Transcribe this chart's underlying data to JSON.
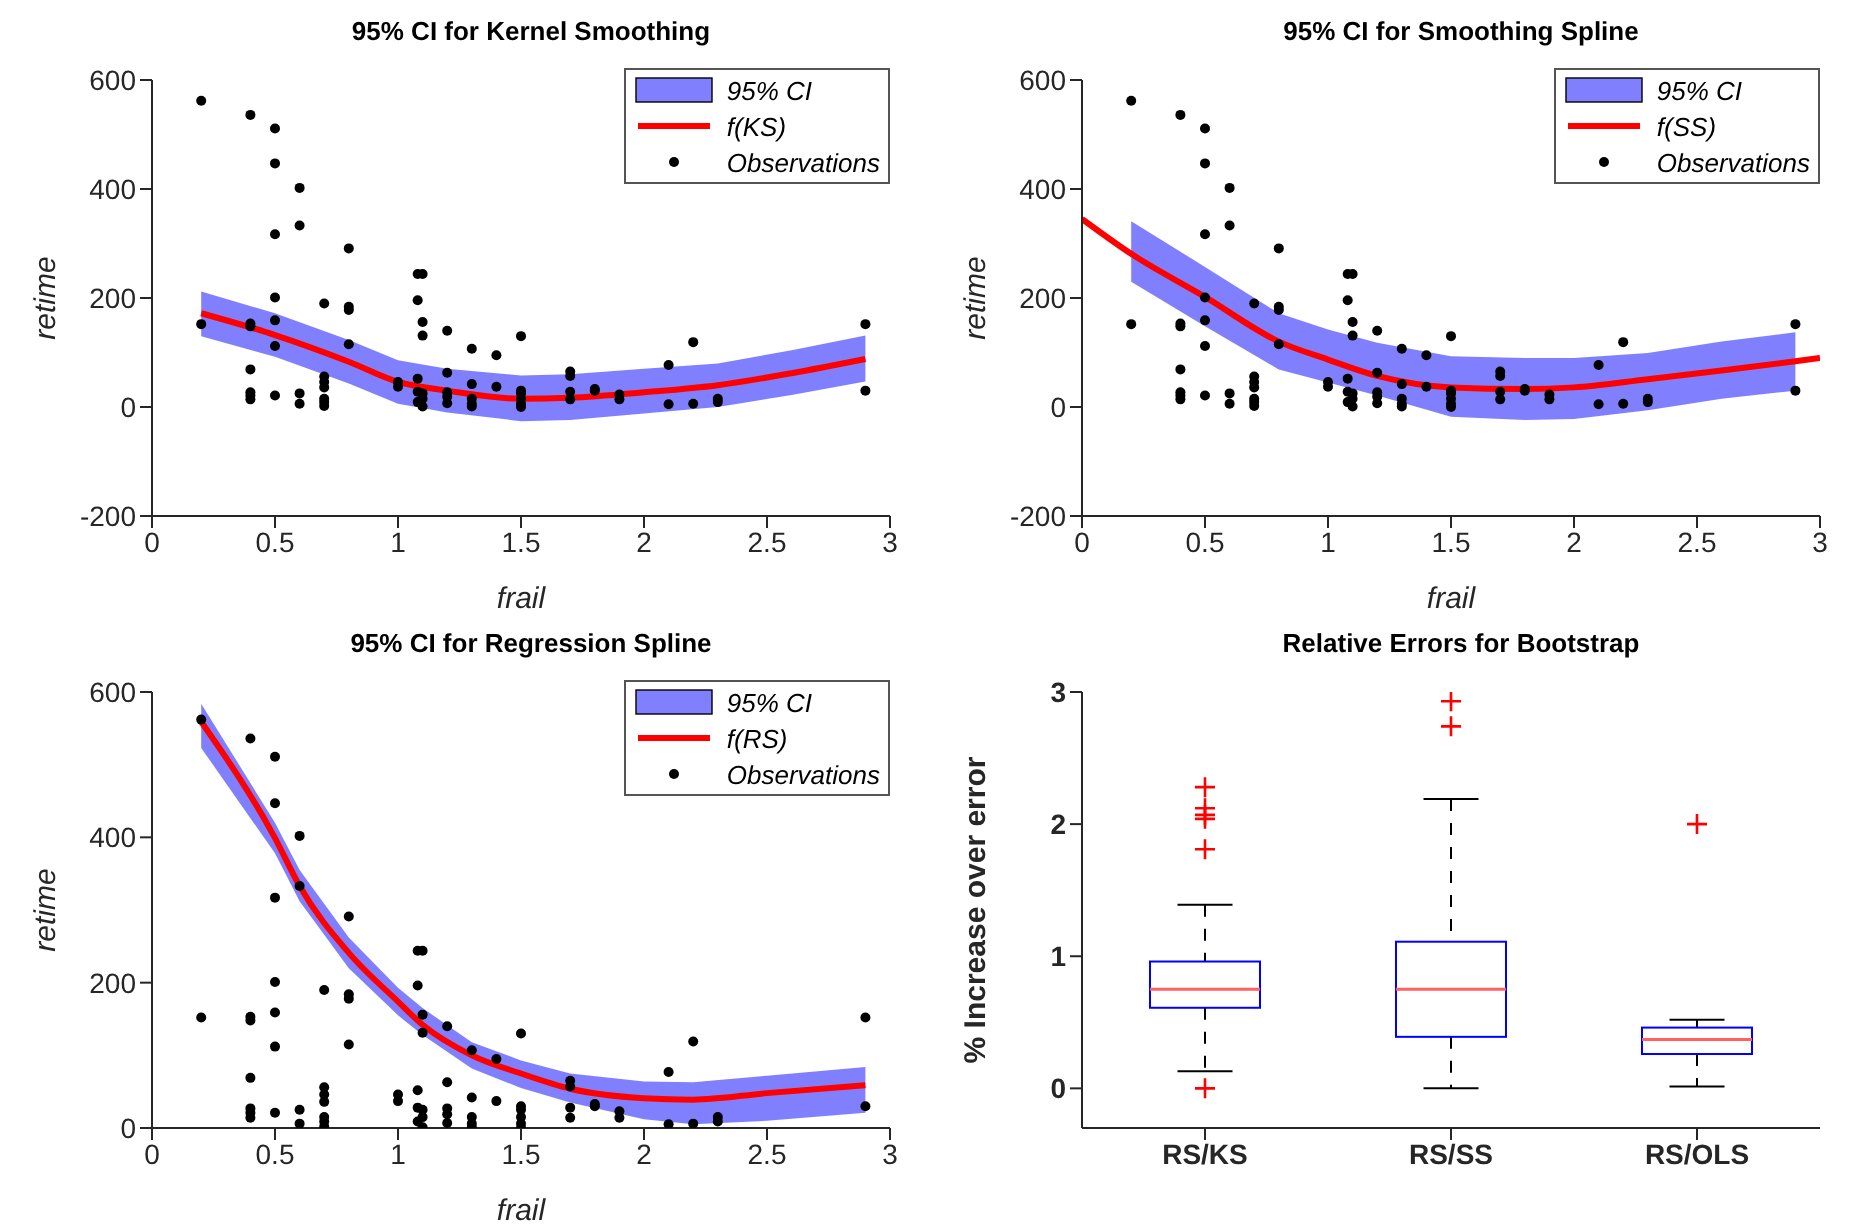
{
  "chart_data": [
    {
      "type": "line",
      "title": "95% CI for Kernel Smoothing",
      "xlabel": "frail",
      "ylabel": "retime",
      "xlim": [
        0,
        3
      ],
      "xticks": [
        0,
        0.5,
        1,
        1.5,
        2,
        2.5,
        3
      ],
      "ylim": [
        -200,
        600
      ],
      "yticks": [
        -200,
        0,
        200,
        400,
        600
      ],
      "legend": "top right",
      "series": [
        {
          "name": "95% CI",
          "type": "line",
          "color": "#8080ff",
          "x": [
            0.2,
            0.5,
            0.8,
            1.0,
            1.2,
            1.5,
            1.7,
            2.0,
            2.3,
            2.6,
            2.9
          ],
          "values": [
            null,
            null,
            null,
            null,
            null,
            null,
            null,
            null,
            null,
            null,
            null
          ],
          "lower": [
            130,
            92,
            43,
            6,
            -10,
            -26,
            -24,
            -12,
            0,
            22,
            47
          ],
          "upper": [
            212,
            172,
            123,
            86,
            70,
            58,
            60,
            70,
            80,
            104,
            131
          ]
        },
        {
          "name": "f(KS)",
          "type": "line",
          "color": "#ff0000",
          "x": [
            0.2,
            0.5,
            0.8,
            1.0,
            1.2,
            1.5,
            1.7,
            2.0,
            2.3,
            2.6,
            2.9
          ],
          "values": [
            172,
            132,
            83,
            46,
            30,
            15,
            17,
            27,
            40,
            62,
            88
          ]
        },
        {
          "name": "Observations",
          "type": "scatter",
          "color": "#000000",
          "marker": "circle",
          "x": [
            0.2,
            0.2,
            0.4,
            0.4,
            0.4,
            0.4,
            0.4,
            0.4,
            0.4,
            0.5,
            0.5,
            0.5,
            0.5,
            0.5,
            0.5,
            0.5,
            0.6,
            0.6,
            0.6,
            0.6,
            0.7,
            0.7,
            0.7,
            0.7,
            0.7,
            0.7,
            0.7,
            0.8,
            0.8,
            0.8,
            0.8,
            1.0,
            1.0,
            1.08,
            1.1,
            1.08,
            1.1,
            1.1,
            1.08,
            1.08,
            1.1,
            1.1,
            1.08,
            1.1,
            1.2,
            1.2,
            1.2,
            1.2,
            1.2,
            1.3,
            1.3,
            1.3,
            1.3,
            1.3,
            1.4,
            1.4,
            1.5,
            1.5,
            1.5,
            1.5,
            1.5,
            1.5,
            1.7,
            1.7,
            1.7,
            1.7,
            1.8,
            1.8,
            1.9,
            1.9,
            2.1,
            2.1,
            2.2,
            2.2,
            2.3,
            2.3,
            2.9,
            2.9
          ],
          "values": [
            562,
            152,
            536,
            153,
            148,
            69,
            27,
            21,
            14,
            511,
            447,
            317,
            201,
            159,
            112,
            21,
            402,
            333,
            25,
            6,
            190,
            56,
            46,
            36,
            15,
            9,
            2,
            291,
            184,
            178,
            115,
            46,
            37,
            244,
            244,
            196,
            156,
            131,
            52,
            28,
            25,
            15,
            9,
            1,
            140,
            63,
            27,
            19,
            7,
            107,
            42,
            15,
            6,
            1,
            95,
            37,
            130,
            30,
            25,
            15,
            6,
            0,
            65,
            57,
            28,
            14,
            33,
            30,
            23,
            14,
            77,
            5,
            119,
            6,
            15,
            9,
            152,
            30
          ]
        }
      ]
    },
    {
      "type": "line",
      "title": "95% CI for Smoothing Spline",
      "xlabel": "frail",
      "ylabel": "retime",
      "xlim": [
        0,
        3
      ],
      "xticks": [
        0,
        0.5,
        1,
        1.5,
        2,
        2.5,
        3
      ],
      "ylim": [
        -200,
        600
      ],
      "yticks": [
        -200,
        0,
        200,
        400,
        600
      ],
      "legend": "top right",
      "series": [
        {
          "name": "95% CI",
          "type": "line",
          "color": "#8080ff",
          "x": [
            0.2,
            0.5,
            0.8,
            1.0,
            1.2,
            1.5,
            1.8,
            2.0,
            2.3,
            2.6,
            2.9
          ],
          "values": [
            null,
            null,
            null,
            null,
            null,
            null,
            null,
            null,
            null,
            null,
            null
          ],
          "lower": [
            230,
            148,
            69,
            45,
            21,
            -18,
            -24,
            -22,
            -6,
            15,
            30
          ],
          "upper": [
            341,
            257,
            172,
            142,
            118,
            93,
            90,
            90,
            99,
            120,
            137
          ]
        },
        {
          "name": "f(SS)",
          "type": "line",
          "color": "#ff0000",
          "x": [
            0,
            0.2,
            0.5,
            0.8,
            1.0,
            1.2,
            1.5,
            1.8,
            2.0,
            2.3,
            2.6,
            2.9,
            3
          ],
          "values": [
            345,
            281,
            202,
            120,
            87,
            57,
            36,
            33,
            36,
            51,
            67,
            84,
            90
          ]
        },
        {
          "name": "Observations",
          "type": "scatter",
          "color": "#000000",
          "marker": "circle",
          "x": [
            0.2,
            0.2,
            0.4,
            0.4,
            0.4,
            0.4,
            0.4,
            0.4,
            0.4,
            0.5,
            0.5,
            0.5,
            0.5,
            0.5,
            0.5,
            0.5,
            0.6,
            0.6,
            0.6,
            0.6,
            0.7,
            0.7,
            0.7,
            0.7,
            0.7,
            0.7,
            0.7,
            0.8,
            0.8,
            0.8,
            0.8,
            1.0,
            1.0,
            1.08,
            1.1,
            1.08,
            1.1,
            1.1,
            1.08,
            1.08,
            1.1,
            1.1,
            1.08,
            1.1,
            1.2,
            1.2,
            1.2,
            1.2,
            1.2,
            1.3,
            1.3,
            1.3,
            1.3,
            1.3,
            1.4,
            1.4,
            1.5,
            1.5,
            1.5,
            1.5,
            1.5,
            1.5,
            1.7,
            1.7,
            1.7,
            1.7,
            1.8,
            1.8,
            1.9,
            1.9,
            2.1,
            2.1,
            2.2,
            2.2,
            2.3,
            2.3,
            2.9,
            2.9
          ],
          "values": [
            562,
            152,
            536,
            153,
            148,
            69,
            27,
            21,
            14,
            511,
            447,
            317,
            201,
            159,
            112,
            21,
            402,
            333,
            25,
            6,
            190,
            56,
            46,
            36,
            15,
            9,
            2,
            291,
            184,
            178,
            115,
            46,
            37,
            244,
            244,
            196,
            156,
            131,
            52,
            28,
            25,
            15,
            9,
            1,
            140,
            63,
            27,
            19,
            7,
            107,
            42,
            15,
            6,
            1,
            95,
            37,
            130,
            30,
            25,
            15,
            6,
            0,
            65,
            57,
            28,
            14,
            33,
            30,
            23,
            14,
            77,
            5,
            119,
            6,
            15,
            9,
            152,
            30
          ]
        }
      ]
    },
    {
      "type": "line",
      "title": "95% CI for Regression Spline",
      "xlabel": "frail",
      "ylabel": "retime",
      "xlim": [
        0,
        3
      ],
      "xticks": [
        0,
        0.5,
        1,
        1.5,
        2,
        2.5,
        3
      ],
      "ylim": [
        0,
        600
      ],
      "yticks": [
        0,
        200,
        400,
        600
      ],
      "legend": "top right",
      "series": [
        {
          "name": "95% CI",
          "type": "line",
          "color": "#8080ff",
          "x": [
            0.2,
            0.5,
            0.6,
            0.8,
            1.0,
            1.1,
            1.3,
            1.5,
            1.7,
            2.0,
            2.2,
            2.5,
            2.9
          ],
          "values": [
            null,
            null,
            null,
            null,
            null,
            null,
            null,
            null,
            null,
            null,
            null,
            null,
            null
          ],
          "lower": [
            523,
            378,
            312,
            220,
            155,
            128,
            82,
            55,
            35,
            12,
            5,
            10,
            21
          ],
          "upper": [
            584,
            420,
            355,
            262,
            193,
            165,
            118,
            93,
            75,
            64,
            63,
            72,
            84
          ]
        },
        {
          "name": "f(RS)",
          "type": "line",
          "color": "#ff0000",
          "x": [
            0.2,
            0.5,
            0.6,
            0.8,
            1.0,
            1.1,
            1.3,
            1.5,
            1.7,
            2.0,
            2.2,
            2.5,
            2.9
          ],
          "values": [
            559,
            399,
            333,
            241,
            174,
            142,
            100,
            75,
            54,
            41,
            39,
            48,
            59
          ]
        },
        {
          "name": "Observations",
          "type": "scatter",
          "color": "#000000",
          "marker": "circle",
          "x": [
            0.2,
            0.2,
            0.4,
            0.4,
            0.4,
            0.4,
            0.4,
            0.4,
            0.4,
            0.5,
            0.5,
            0.5,
            0.5,
            0.5,
            0.5,
            0.5,
            0.6,
            0.6,
            0.6,
            0.6,
            0.7,
            0.7,
            0.7,
            0.7,
            0.7,
            0.7,
            0.7,
            0.8,
            0.8,
            0.8,
            0.8,
            1.0,
            1.0,
            1.08,
            1.1,
            1.08,
            1.1,
            1.1,
            1.08,
            1.08,
            1.1,
            1.1,
            1.08,
            1.1,
            1.2,
            1.2,
            1.2,
            1.2,
            1.2,
            1.3,
            1.3,
            1.3,
            1.3,
            1.3,
            1.4,
            1.4,
            1.5,
            1.5,
            1.5,
            1.5,
            1.5,
            1.5,
            1.7,
            1.7,
            1.7,
            1.7,
            1.8,
            1.8,
            1.9,
            1.9,
            2.1,
            2.1,
            2.2,
            2.2,
            2.3,
            2.3,
            2.9,
            2.9
          ],
          "values": [
            562,
            152,
            536,
            153,
            148,
            69,
            27,
            21,
            14,
            511,
            447,
            317,
            201,
            159,
            112,
            21,
            402,
            333,
            25,
            6,
            190,
            56,
            46,
            36,
            15,
            9,
            2,
            291,
            184,
            178,
            115,
            46,
            37,
            244,
            244,
            196,
            156,
            131,
            52,
            28,
            25,
            15,
            9,
            1,
            140,
            63,
            27,
            19,
            7,
            107,
            42,
            15,
            6,
            1,
            95,
            37,
            130,
            30,
            25,
            15,
            6,
            0,
            65,
            57,
            28,
            14,
            33,
            30,
            23,
            14,
            77,
            5,
            119,
            6,
            15,
            9,
            152,
            30
          ]
        }
      ]
    },
    {
      "type": "box",
      "title": "Relative Errors for Bootstrap",
      "ylabel": "% Increase over error",
      "categories": [
        "RS/KS",
        "RS/SS",
        "RS/OLS"
      ],
      "ylim": [
        -0.3,
        3
      ],
      "yticks": [
        0,
        1,
        2,
        3
      ],
      "color": "#0000ff",
      "boxes": [
        {
          "low": 0.13,
          "q1": 0.61,
          "median": 0.75,
          "q3": 0.96,
          "high": 1.39,
          "outliers": [
            2.28,
            2.12,
            2.07,
            2.04,
            1.81,
            0
          ]
        },
        {
          "low": 0,
          "q1": 0.39,
          "median": 0.75,
          "q3": 1.11,
          "high": 2.19,
          "outliers": [
            2.74,
            2.93
          ]
        },
        {
          "low": 0.015,
          "q1": 0.26,
          "median": 0.37,
          "q3": 0.46,
          "high": 0.52,
          "outliers": [
            2.0
          ]
        }
      ]
    }
  ]
}
